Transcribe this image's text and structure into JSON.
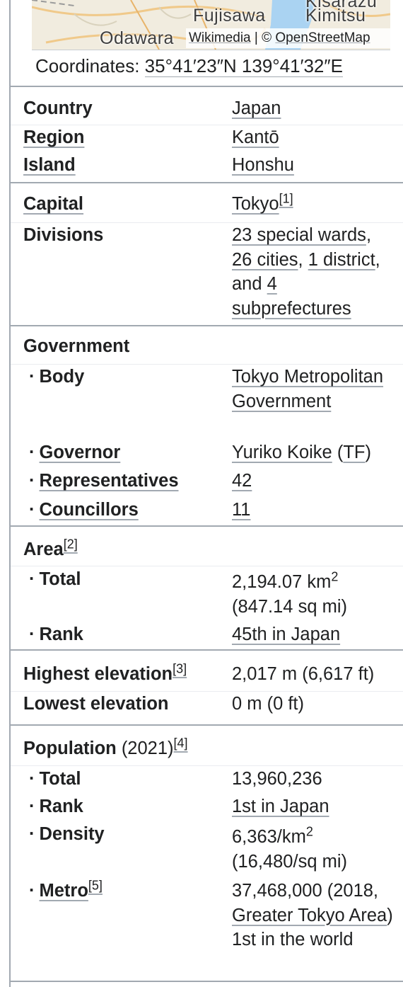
{
  "map": {
    "labels": {
      "fujisawa": "Fujisawa",
      "kisarazu": "Kisarazu",
      "kimitsu": "Kimitsu",
      "odawara": "Odawara"
    },
    "attribution": {
      "wikimedia": "Wikimedia",
      "sep": " | © ",
      "osm": "OpenStreetMap"
    }
  },
  "coords": {
    "label": "Coordinates: ",
    "value": "35°41′23″N 139°41′32″E"
  },
  "rows": {
    "country": {
      "label": "Country",
      "value": "Japan"
    },
    "region": {
      "label": "Region",
      "value": "Kantō"
    },
    "island": {
      "label": "Island",
      "value": "Honshu"
    },
    "capital": {
      "label": "Capital",
      "value": "Tokyo",
      "ref": "[1]"
    },
    "divisions": {
      "label": "Divisions",
      "v1": "23 special wards",
      "c1": ",",
      "v2": "26 cities",
      "c2": ", ",
      "v3": "1 district",
      "c3": ",",
      "and": "and ",
      "v4": "4",
      "v5": "subprefectures"
    },
    "government": {
      "label": "Government"
    },
    "body": {
      "bullet": "·",
      "label": "Body",
      "value": "Tokyo Metropolitan Government"
    },
    "governor": {
      "bullet": "·",
      "label": "Governor",
      "value": "Yuriko Koike",
      "open": " (",
      "party": "TF",
      "close": ")"
    },
    "representatives": {
      "bullet": "·",
      "label": "Representatives",
      "value": "42"
    },
    "councillors": {
      "bullet": "·",
      "label": "Councillors",
      "value": "11"
    },
    "area": {
      "label": "Area",
      "ref": "[2]"
    },
    "area_total": {
      "bullet": "·",
      "label": "Total",
      "value": "2,194.07 km",
      "exp": "2",
      "value2": "(847.14 sq mi)"
    },
    "area_rank": {
      "bullet": "·",
      "label": "Rank",
      "value": "45th in Japan"
    },
    "highest": {
      "label": "Highest elevation",
      "ref": "[3]",
      "value": "2,017 m (6,617 ft)"
    },
    "lowest": {
      "label": "Lowest elevation",
      "value": "0 m (0 ft)"
    },
    "population": {
      "label": "Population",
      "year": " (2021)",
      "ref": "[4]"
    },
    "pop_total": {
      "bullet": "·",
      "label": "Total",
      "value": "13,960,236"
    },
    "pop_rank": {
      "bullet": "·",
      "label": "Rank",
      "value": "1st in Japan"
    },
    "density": {
      "bullet": "·",
      "label": "Density",
      "value": "6,363/km",
      "exp": "2",
      "value2": "(16,480/sq mi)"
    },
    "metro": {
      "bullet": "·",
      "label": "Metro",
      "ref": "[5]",
      "value": "37,468,000 (2018, ",
      "link": "Greater Tokyo Area",
      "rest": ") 1st in the world"
    }
  }
}
